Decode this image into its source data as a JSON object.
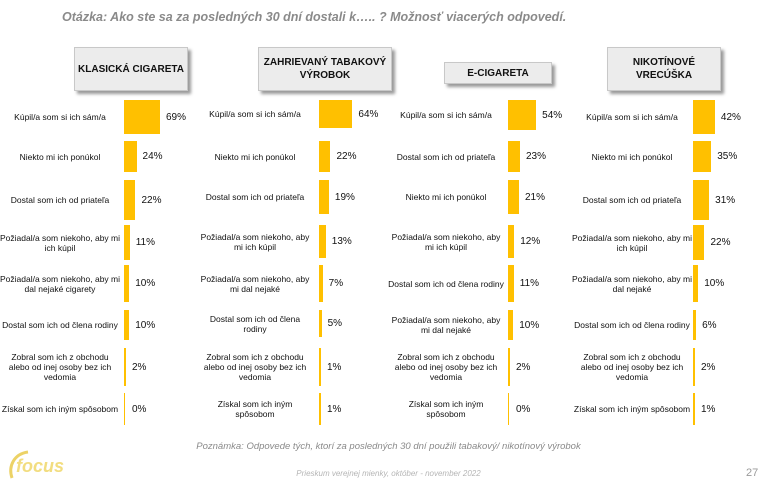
{
  "title": "Otázka: Ako ste sa za posledných 30 dní dostali k….. ? Možnosť viacerých odpovedí.",
  "note": "Poznámka: Odpovede tých, ktorí za posledných 30 dní použili tabakový/ nikotínový výrobok",
  "footer": "Prieskum verejnej mienky, október - november 2022",
  "page_number": "27",
  "logo_text": "focus",
  "colors": {
    "bar": "#ffc000",
    "header_bg": "#ececec",
    "title": "#8a8a8a"
  },
  "chart_data": [
    {
      "type": "bar",
      "title": "KLASICKÁ CIGARETA",
      "categories": [
        "Kúpil/a som si ich sám/a",
        "Niekto mi ich ponúkol",
        "Dostal som ich od priateľa",
        "Požiadal/a som niekoho, aby mi ich kúpil",
        "Požiadal/a som niekoho, aby mi dal nejaké cigarety",
        "Dostal som ich od člena rodiny",
        "Zobral som ich z obchodu alebo od inej osoby bez ich vedomia",
        "Získal som ich iným spôsobom"
      ],
      "values": [
        69,
        24,
        22,
        11,
        10,
        10,
        2,
        0
      ],
      "labels": [
        "69%",
        "24%",
        "22%",
        "11%",
        "10%",
        "10%",
        "2%",
        "0%"
      ]
    },
    {
      "type": "bar",
      "title": "ZAHRIEVANÝ TABAKOVÝ VÝROBOK",
      "categories": [
        "Kúpil/a som si ich sám/a",
        "Niekto mi ich ponúkol",
        "Dostal som ich od priateľa",
        "Požiadal/a som niekoho, aby mi ich kúpil",
        "Požiadal/a som niekoho, aby mi dal nejaké",
        "Dostal som ich od člena rodiny",
        "Zobral som ich z obchodu alebo od inej osoby bez ich vedomia",
        "Získal som ich iným spôsobom"
      ],
      "values": [
        64,
        22,
        19,
        13,
        7,
        5,
        1,
        1
      ],
      "labels": [
        "64%",
        "22%",
        "19%",
        "13%",
        "7%",
        "5%",
        "1%",
        "1%"
      ]
    },
    {
      "type": "bar",
      "title": "E-CIGARETA",
      "categories": [
        "Kúpil/a som si ich sám/a",
        "Dostal som ich od priateľa",
        "Niekto mi ich ponúkol",
        "Požiadal/a som niekoho, aby mi ich kúpil",
        "Dostal som ich od člena rodiny",
        "Požiadal/a som niekoho, aby mi dal nejaké",
        "Zobral som ich z obchodu alebo od inej osoby bez ich vedomia",
        "Získal som ich iným spôsobom"
      ],
      "values": [
        54,
        23,
        21,
        12,
        11,
        10,
        2,
        0
      ],
      "labels": [
        "54%",
        "23%",
        "21%",
        "12%",
        "11%",
        "10%",
        "2%",
        "0%"
      ]
    },
    {
      "type": "bar",
      "title": "NIKOTÍNOVÉ VRECÚŠKA",
      "categories": [
        "Kúpil/a som si ich sám/a",
        "Niekto mi ich ponúkol",
        "Dostal som ich od priateľa",
        "Požiadal/a som niekoho, aby mi ich kúpil",
        "Požiadal/a som niekoho, aby mi dal nejaké",
        "Dostal som ich od člena rodiny",
        "Zobral som ich z obchodu alebo od inej osoby bez ich vedomia",
        "Získal som ich iným spôsobom"
      ],
      "values": [
        42,
        35,
        31,
        22,
        10,
        6,
        2,
        1
      ],
      "labels": [
        "42%",
        "35%",
        "31%",
        "22%",
        "10%",
        "6%",
        "2%",
        "1%"
      ]
    }
  ]
}
